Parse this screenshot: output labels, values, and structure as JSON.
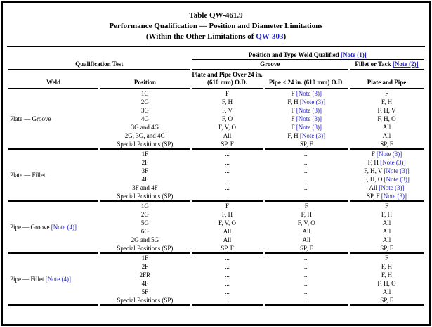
{
  "title": {
    "line1": "Table QW-461.9",
    "line2": "Performance Qualification — Position and Diameter Limitations",
    "line3_prefix": "(Within the Other Limitations of ",
    "line3_link": "QW-303",
    "line3_suffix": ")"
  },
  "header": {
    "spanner_prefix": "Position and Type Weld Qualified ",
    "spanner_note": "[Note (1)]",
    "qualification_test": "Qualification Test",
    "groove": "Groove",
    "fillet_prefix": "Fillet or Tack ",
    "fillet_note": "[Note (2)]",
    "col_weld": "Weld",
    "col_position": "Position",
    "col_plate_pipe_over": "Plate and Pipe Over 24 in. (610 mm) O.D.",
    "col_pipe_le": "Pipe ≤ 24 in. (610 mm) O.D.",
    "col_plate_and_pipe": "Plate and Pipe"
  },
  "colors": {
    "link_blue": "#2424c8",
    "rule_black": "#000000"
  },
  "groups": [
    {
      "weld": "Plate — Groove",
      "weld_note": "",
      "rows": [
        {
          "position": "1G",
          "cells": [
            {
              "v": "F"
            },
            {
              "v": "F",
              "note": "[Note (3)]"
            },
            {
              "v": "F"
            }
          ]
        },
        {
          "position": "2G",
          "cells": [
            {
              "v": "F, H"
            },
            {
              "v": "F, H",
              "note": "[Note (3)]"
            },
            {
              "v": "F, H"
            }
          ]
        },
        {
          "position": "3G",
          "cells": [
            {
              "v": "F, V"
            },
            {
              "v": "F",
              "note": "[Note (3)]"
            },
            {
              "v": "F, H, V"
            }
          ]
        },
        {
          "position": "4G",
          "cells": [
            {
              "v": "F, O"
            },
            {
              "v": "F",
              "note": "[Note (3)]"
            },
            {
              "v": "F, H, O"
            }
          ]
        },
        {
          "position": "3G and 4G",
          "cells": [
            {
              "v": "F, V, O"
            },
            {
              "v": "F",
              "note": "[Note (3)]"
            },
            {
              "v": "All"
            }
          ]
        },
        {
          "position": "2G, 3G, and 4G",
          "cells": [
            {
              "v": "All"
            },
            {
              "v": "F, H",
              "note": "[Note (3)]"
            },
            {
              "v": "All"
            }
          ]
        },
        {
          "position": "Special Positions (SP)",
          "cells": [
            {
              "v": "SP, F"
            },
            {
              "v": "SP, F"
            },
            {
              "v": "SP, F"
            }
          ]
        }
      ]
    },
    {
      "weld": "Plate — Fillet",
      "weld_note": "",
      "rows": [
        {
          "position": "1F",
          "cells": [
            {
              "v": "..."
            },
            {
              "v": "..."
            },
            {
              "v": "F",
              "note": "[Note (3)]"
            }
          ]
        },
        {
          "position": "2F",
          "cells": [
            {
              "v": "..."
            },
            {
              "v": "..."
            },
            {
              "v": "F, H",
              "note": "[Note (3)]"
            }
          ]
        },
        {
          "position": "3F",
          "cells": [
            {
              "v": "..."
            },
            {
              "v": "..."
            },
            {
              "v": "F, H, V",
              "note": "[Note (3)]"
            }
          ]
        },
        {
          "position": "4F",
          "cells": [
            {
              "v": "..."
            },
            {
              "v": "..."
            },
            {
              "v": "F, H, O",
              "note": "[Note (3)]"
            }
          ]
        },
        {
          "position": "3F and 4F",
          "cells": [
            {
              "v": "..."
            },
            {
              "v": "..."
            },
            {
              "v": "All",
              "note": "[Note (3)]"
            }
          ]
        },
        {
          "position": "Special Positions (SP)",
          "cells": [
            {
              "v": "..."
            },
            {
              "v": "..."
            },
            {
              "v": "SP, F",
              "note": "[Note (3)]"
            }
          ]
        }
      ]
    },
    {
      "weld": "Pipe — Groove",
      "weld_note": "[Note (4)]",
      "rows": [
        {
          "position": "1G",
          "cells": [
            {
              "v": "F"
            },
            {
              "v": "F"
            },
            {
              "v": "F"
            }
          ]
        },
        {
          "position": "2G",
          "cells": [
            {
              "v": "F, H"
            },
            {
              "v": "F, H"
            },
            {
              "v": "F, H"
            }
          ]
        },
        {
          "position": "5G",
          "cells": [
            {
              "v": "F, V, O"
            },
            {
              "v": "F, V, O"
            },
            {
              "v": "All"
            }
          ]
        },
        {
          "position": "6G",
          "cells": [
            {
              "v": "All"
            },
            {
              "v": "All"
            },
            {
              "v": "All"
            }
          ]
        },
        {
          "position": "2G and 5G",
          "cells": [
            {
              "v": "All"
            },
            {
              "v": "All"
            },
            {
              "v": "All"
            }
          ]
        },
        {
          "position": "Special Positions (SP)",
          "cells": [
            {
              "v": "SP, F"
            },
            {
              "v": "SP, F"
            },
            {
              "v": "SP, F"
            }
          ]
        }
      ]
    },
    {
      "weld": "Pipe — Fillet",
      "weld_note": "[Note (4)]",
      "rows": [
        {
          "position": "1F",
          "cells": [
            {
              "v": "..."
            },
            {
              "v": "..."
            },
            {
              "v": "F"
            }
          ]
        },
        {
          "position": "2F",
          "cells": [
            {
              "v": "..."
            },
            {
              "v": "..."
            },
            {
              "v": "F, H"
            }
          ]
        },
        {
          "position": "2FR",
          "cells": [
            {
              "v": "..."
            },
            {
              "v": "..."
            },
            {
              "v": "F, H"
            }
          ]
        },
        {
          "position": "4F",
          "cells": [
            {
              "v": "..."
            },
            {
              "v": "..."
            },
            {
              "v": "F, H, O"
            }
          ]
        },
        {
          "position": "5F",
          "cells": [
            {
              "v": "..."
            },
            {
              "v": "..."
            },
            {
              "v": "All"
            }
          ]
        },
        {
          "position": "Special Positions (SP)",
          "cells": [
            {
              "v": "..."
            },
            {
              "v": "..."
            },
            {
              "v": "SP, F"
            }
          ]
        }
      ]
    }
  ]
}
